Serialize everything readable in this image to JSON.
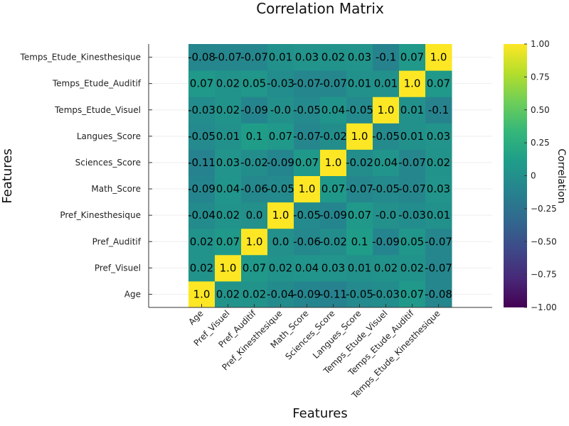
{
  "chart_data": {
    "type": "heatmap",
    "title": "Correlation Matrix",
    "xlabel": "Features",
    "ylabel": "Features",
    "categories": [
      "Age",
      "Pref_Visuel",
      "Pref_Auditif",
      "Pref_Kinesthesique",
      "Math_Score",
      "Sciences_Score",
      "Langues_Score",
      "Temps_Etude_Visuel",
      "Temps_Etude_Auditif",
      "Temps_Etude_Kinesthesique"
    ],
    "matrix": [
      [
        1.0,
        0.02,
        0.02,
        -0.04,
        -0.09,
        -0.11,
        -0.05,
        -0.03,
        0.07,
        -0.08
      ],
      [
        0.02,
        1.0,
        0.07,
        0.02,
        0.04,
        0.03,
        0.01,
        0.02,
        0.02,
        -0.07
      ],
      [
        0.02,
        0.07,
        1.0,
        0.0,
        -0.06,
        -0.02,
        0.1,
        -0.09,
        0.05,
        -0.07
      ],
      [
        -0.04,
        0.02,
        0.0,
        1.0,
        -0.05,
        -0.09,
        0.07,
        -0.0,
        -0.03,
        0.01
      ],
      [
        -0.09,
        0.04,
        -0.06,
        -0.05,
        1.0,
        0.07,
        -0.07,
        -0.05,
        -0.07,
        0.03
      ],
      [
        -0.11,
        0.03,
        -0.02,
        -0.09,
        0.07,
        1.0,
        -0.02,
        0.04,
        -0.07,
        0.02
      ],
      [
        -0.05,
        0.01,
        0.1,
        0.07,
        -0.07,
        -0.02,
        1.0,
        -0.05,
        0.01,
        0.03
      ],
      [
        -0.03,
        0.02,
        -0.09,
        -0.0,
        -0.05,
        0.04,
        -0.05,
        1.0,
        0.01,
        -0.1
      ],
      [
        0.07,
        0.02,
        0.05,
        -0.03,
        -0.07,
        -0.07,
        0.01,
        0.01,
        1.0,
        0.07
      ],
      [
        -0.08,
        -0.07,
        -0.07,
        0.01,
        0.03,
        0.02,
        0.03,
        -0.1,
        0.07,
        1.0
      ]
    ],
    "cell_labels": [
      [
        "1.0",
        "0.02",
        "0.02",
        "-0.04",
        "-0.09",
        "-0.11",
        "-0.05",
        "-0.03",
        "0.07",
        "-0.08"
      ],
      [
        "0.02",
        "1.0",
        "0.07",
        "0.02",
        "0.04",
        "0.03",
        "0.01",
        "0.02",
        "0.02",
        "-0.07"
      ],
      [
        "0.02",
        "0.07",
        "1.0",
        "0.0",
        "-0.06",
        "-0.02",
        "0.1",
        "-0.09",
        "0.05",
        "-0.07"
      ],
      [
        "-0.04",
        "0.02",
        "0.0",
        "1.0",
        "-0.05",
        "-0.09",
        "0.07",
        "-0.0",
        "-0.03",
        "0.01"
      ],
      [
        "-0.09",
        "0.04",
        "-0.06",
        "-0.05",
        "1.0",
        "0.07",
        "-0.07",
        "-0.05",
        "-0.07",
        "0.03"
      ],
      [
        "-0.11",
        "0.03",
        "-0.02",
        "-0.09",
        "0.07",
        "1.0",
        "-0.02",
        "0.04",
        "-0.07",
        "0.02"
      ],
      [
        "-0.05",
        "0.01",
        "0.1",
        "0.07",
        "-0.07",
        "-0.02",
        "1.0",
        "-0.05",
        "0.01",
        "0.03"
      ],
      [
        "-0.03",
        "0.02",
        "-0.09",
        "-0.0",
        "-0.05",
        "0.04",
        "-0.05",
        "1.0",
        "0.01",
        "-0.1"
      ],
      [
        "0.07",
        "0.02",
        "0.05",
        "-0.03",
        "-0.07",
        "-0.07",
        "0.01",
        "0.01",
        "1.0",
        "0.07"
      ],
      [
        "-0.08",
        "-0.07",
        "-0.07",
        "0.01",
        "0.03",
        "0.02",
        "0.03",
        "-0.1",
        "0.07",
        "1.0"
      ]
    ],
    "colorbar": {
      "label": "Correlation",
      "range": [
        -1.0,
        1.0
      ],
      "ticks": [
        "1.00",
        "0.75",
        "0.50",
        "0.25",
        "0",
        "−0.25",
        "−0.50",
        "−0.75",
        "−1.00"
      ],
      "tick_values": [
        1.0,
        0.75,
        0.5,
        0.25,
        0,
        -0.25,
        -0.5,
        -0.75,
        -1.0
      ],
      "colormap": "viridis"
    },
    "colors": {
      "viridis": [
        "#440154",
        "#482878",
        "#3e4989",
        "#31688e",
        "#26828e",
        "#1f9e89",
        "#35b779",
        "#6ece58",
        "#b5de2b",
        "#fde725"
      ]
    },
    "grid": true,
    "legend": "colorbar-right"
  }
}
